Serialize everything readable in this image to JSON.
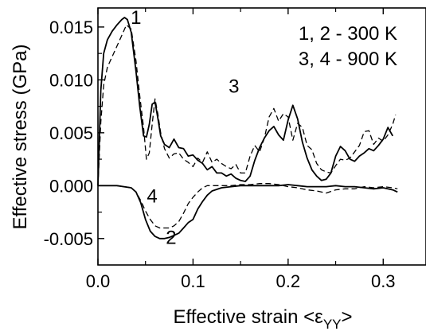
{
  "chart_data": {
    "type": "line",
    "xlabel": "Effective strain <ε",
    "xlabel_subscript": "YY",
    "xlabel_suffix": ">",
    "ylabel": "Effective stress (GPa)",
    "xlim": [
      0.0,
      0.345
    ],
    "ylim": [
      -0.0075,
      0.0168
    ],
    "x_ticks": [
      0.0,
      0.1,
      0.2,
      0.3
    ],
    "x_tick_labels": [
      "0.0",
      "0.1",
      "0.2",
      "0.3"
    ],
    "y_ticks": [
      -0.005,
      0.0,
      0.005,
      0.01,
      0.015
    ],
    "y_tick_labels": [
      "-0.005",
      "0.000",
      "0.005",
      "0.010",
      "0.015"
    ],
    "grid": false,
    "legend_lines": [
      "1, 2 - 300 K",
      "3, 4 - 900 K"
    ],
    "curve_labels": [
      {
        "text": "1",
        "x": 0.04,
        "y": 0.0153
      },
      {
        "text": "2",
        "x": 0.077,
        "y": -0.0055
      },
      {
        "text": "3",
        "x": 0.143,
        "y": 0.0088
      },
      {
        "text": "4",
        "x": 0.057,
        "y": -0.0016
      }
    ],
    "series": [
      {
        "style": "solid",
        "color": "#000000",
        "x": [
          0.0,
          0.003,
          0.006,
          0.01,
          0.015,
          0.02,
          0.025,
          0.028,
          0.031,
          0.035,
          0.04,
          0.044,
          0.048,
          0.051,
          0.054,
          0.057,
          0.06,
          0.063,
          0.066,
          0.07,
          0.075,
          0.08,
          0.085,
          0.09,
          0.095,
          0.1,
          0.105,
          0.11,
          0.115,
          0.12,
          0.125,
          0.13,
          0.135,
          0.14,
          0.145,
          0.15,
          0.155,
          0.16,
          0.165,
          0.17,
          0.175,
          0.18,
          0.185,
          0.19,
          0.195,
          0.2,
          0.205,
          0.21,
          0.215,
          0.22,
          0.225,
          0.23,
          0.235,
          0.24,
          0.245,
          0.25,
          0.255,
          0.26,
          0.265,
          0.27,
          0.275,
          0.28,
          0.285,
          0.29,
          0.295,
          0.3,
          0.305,
          0.31
        ],
        "y": [
          0.0,
          0.009,
          0.0125,
          0.0138,
          0.0146,
          0.0152,
          0.0157,
          0.0159,
          0.0157,
          0.0145,
          0.0108,
          0.0075,
          0.0047,
          0.0046,
          0.0058,
          0.0077,
          0.0079,
          0.0064,
          0.0047,
          0.0039,
          0.0036,
          0.0044,
          0.0036,
          0.0035,
          0.0028,
          0.0029,
          0.0024,
          0.0021,
          0.0015,
          0.0018,
          0.0012,
          0.0012,
          0.0009,
          0.0011,
          0.0007,
          0.0005,
          0.0004,
          0.0009,
          0.0024,
          0.0036,
          0.0045,
          0.0052,
          0.0056,
          0.0048,
          0.0043,
          0.0062,
          0.0076,
          0.0063,
          0.0041,
          0.0026,
          0.0015,
          0.0009,
          0.0005,
          0.0006,
          0.0012,
          0.0028,
          0.0037,
          0.0033,
          0.0025,
          0.0023,
          0.0028,
          0.0031,
          0.0035,
          0.0033,
          0.0038,
          0.0044,
          0.0055,
          0.0047
        ]
      },
      {
        "style": "dashed",
        "color": "#000000",
        "x": [
          0.0,
          0.003,
          0.006,
          0.01,
          0.015,
          0.02,
          0.025,
          0.03,
          0.035,
          0.04,
          0.044,
          0.048,
          0.051,
          0.054,
          0.057,
          0.06,
          0.063,
          0.066,
          0.07,
          0.075,
          0.08,
          0.085,
          0.09,
          0.095,
          0.1,
          0.105,
          0.11,
          0.115,
          0.12,
          0.125,
          0.13,
          0.135,
          0.14,
          0.145,
          0.15,
          0.155,
          0.16,
          0.165,
          0.17,
          0.175,
          0.18,
          0.185,
          0.19,
          0.195,
          0.2,
          0.205,
          0.21,
          0.215,
          0.22,
          0.225,
          0.23,
          0.235,
          0.24,
          0.245,
          0.25,
          0.255,
          0.26,
          0.265,
          0.27,
          0.275,
          0.28,
          0.285,
          0.29,
          0.295,
          0.3,
          0.305,
          0.31,
          0.313
        ],
        "y": [
          0.0,
          0.006,
          0.0095,
          0.0112,
          0.0122,
          0.0132,
          0.0142,
          0.0152,
          0.0148,
          0.0118,
          0.0085,
          0.0055,
          0.0025,
          0.0031,
          0.0058,
          0.0082,
          0.0068,
          0.005,
          0.0035,
          0.0026,
          0.003,
          0.0031,
          0.0025,
          0.0022,
          0.0018,
          0.0026,
          0.0022,
          0.0032,
          0.0022,
          0.0025,
          0.0021,
          0.0018,
          0.0016,
          0.002,
          0.0012,
          0.0012,
          0.0028,
          0.0038,
          0.0032,
          0.0045,
          0.0065,
          0.0073,
          0.0061,
          0.0068,
          0.0065,
          0.0043,
          0.0059,
          0.0055,
          0.0038,
          0.0034,
          0.0021,
          0.0015,
          0.0013,
          0.0012,
          0.0019,
          0.0025,
          0.0024,
          0.0026,
          0.0032,
          0.0038,
          0.0051,
          0.0052,
          0.0039,
          0.0045,
          0.0042,
          0.0048,
          0.0058,
          0.0067
        ]
      },
      {
        "style": "solid",
        "color": "#000000",
        "x": [
          0.0,
          0.02,
          0.035,
          0.04,
          0.045,
          0.05,
          0.055,
          0.06,
          0.065,
          0.07,
          0.075,
          0.08,
          0.085,
          0.09,
          0.095,
          0.1,
          0.105,
          0.11,
          0.115,
          0.12,
          0.13,
          0.14,
          0.15,
          0.16,
          0.17,
          0.18,
          0.19,
          0.2,
          0.21,
          0.22,
          0.23,
          0.24,
          0.25,
          0.26,
          0.27,
          0.28,
          0.29,
          0.3,
          0.31,
          0.315
        ],
        "y": [
          0.0,
          0.0,
          -0.0002,
          -0.0006,
          -0.0016,
          -0.0032,
          -0.0043,
          -0.0048,
          -0.005,
          -0.005,
          -0.0049,
          -0.0047,
          -0.0045,
          -0.004,
          -0.0035,
          -0.0032,
          -0.0022,
          -0.0015,
          -0.0009,
          -0.0005,
          -0.0002,
          -0.0001,
          0.0,
          0.0,
          0.0,
          0.0,
          0.0,
          0.0001,
          0.0,
          -0.0001,
          -0.0001,
          -0.0001,
          0.0,
          -0.0001,
          -0.0001,
          -0.0002,
          -0.0003,
          -0.0002,
          -0.0004,
          -0.0006
        ]
      },
      {
        "style": "dashed",
        "color": "#000000",
        "x": [
          0.0,
          0.02,
          0.035,
          0.04,
          0.045,
          0.05,
          0.055,
          0.06,
          0.065,
          0.07,
          0.075,
          0.08,
          0.085,
          0.09,
          0.095,
          0.1,
          0.105,
          0.11,
          0.115,
          0.12,
          0.13,
          0.14,
          0.15,
          0.16,
          0.17,
          0.18,
          0.19,
          0.2,
          0.21,
          0.22,
          0.23,
          0.24,
          0.25,
          0.26,
          0.27,
          0.28,
          0.29,
          0.3,
          0.31,
          0.315
        ],
        "y": [
          0.0,
          0.0,
          -0.0002,
          -0.0006,
          -0.0014,
          -0.0024,
          -0.0032,
          -0.0038,
          -0.004,
          -0.004,
          -0.004,
          -0.0038,
          -0.0034,
          -0.0026,
          -0.0017,
          -0.0011,
          -0.0006,
          -0.0002,
          0.0,
          0.0,
          0.0,
          0.0,
          0.0001,
          0.0001,
          0.0002,
          0.0002,
          0.0001,
          -0.0001,
          -0.0002,
          -0.0004,
          -0.0005,
          -0.0007,
          -0.0004,
          -0.0003,
          -0.0003,
          -0.0001,
          -0.0002,
          -0.0001,
          -0.0002,
          -0.0003
        ]
      }
    ]
  }
}
